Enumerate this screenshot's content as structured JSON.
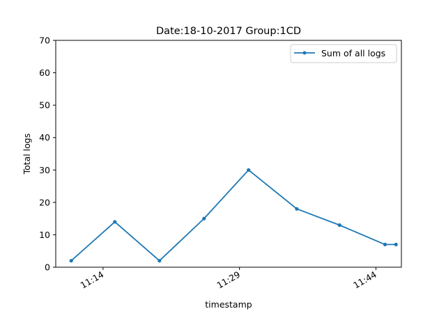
{
  "chart_data": {
    "type": "line",
    "title": "Date:18-10-2017  Group:1CD",
    "xlabel": "timestamp",
    "ylabel": "Total logs",
    "ylim": [
      0,
      70
    ],
    "yticks": [
      0,
      10,
      20,
      30,
      40,
      50,
      60,
      70
    ],
    "xlim_minutes": [
      8.8,
      46.8
    ],
    "xticks": [
      {
        "minute": 14,
        "label": "11:14"
      },
      {
        "minute": 29,
        "label": "11:29"
      },
      {
        "minute": 44,
        "label": "11:44"
      }
    ],
    "series": [
      {
        "name": "Sum of all logs",
        "color": "#1f77b4",
        "x_minutes": [
          10.5,
          15.3,
          20.2,
          25.1,
          30.0,
          35.3,
          40.0,
          45.0,
          46.2
        ],
        "values": [
          2,
          14,
          2,
          15,
          30,
          18,
          13,
          7,
          7
        ]
      }
    ],
    "legend_position": "top-right",
    "grid": false
  }
}
